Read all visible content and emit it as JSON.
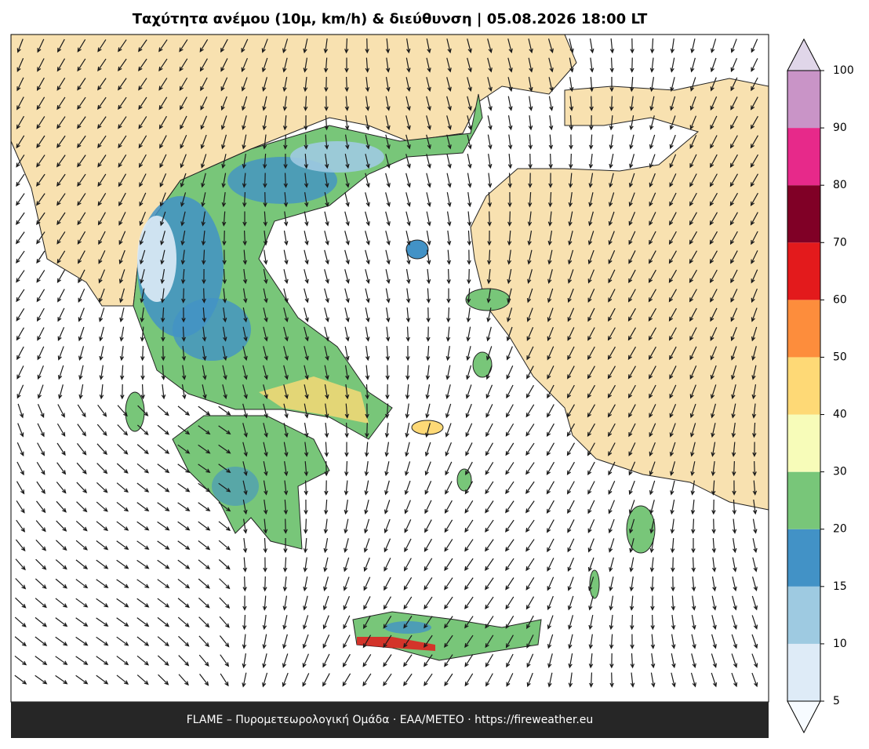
{
  "title": "Ταχύτητα ανέμου (10μ, km/h) & διεύθυνση  |  05.08.2026 18:00 LT",
  "footer": "FLAME – Πυρομετεωρολογική Ομάδα · ΕΑΑ/METEO · https://fireweather.eu",
  "colorbar": {
    "ticks": [
      5,
      10,
      15,
      20,
      30,
      40,
      50,
      60,
      70,
      80,
      90,
      100
    ],
    "colors": [
      "#deebf7",
      "#9ecae1",
      "#4292c6",
      "#78c679",
      "#f7fcb9",
      "#fed976",
      "#fd8d3c",
      "#e31a1c",
      "#800026",
      "#e7298a",
      "#c994c7"
    ],
    "under_color": "#f7fbff",
    "over_color": "#e0d6e9"
  }
}
